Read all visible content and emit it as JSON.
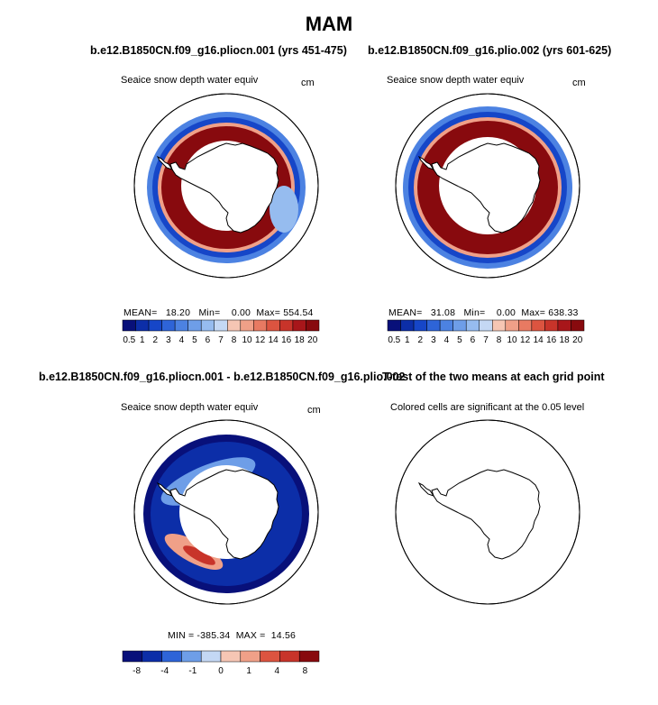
{
  "title": "MAM",
  "panels": [
    {
      "run": "b.e12.B1850CN.f09_g16.pliocn.001 (yrs 451-475)",
      "field": "Seaice snow depth water equiv",
      "units": "cm",
      "stats": {
        "mean_label": "MEAN=",
        "mean": "18.20",
        "min_label": "Min=",
        "min": "0.00",
        "max_label": "Max=",
        "max": "554.54"
      }
    },
    {
      "run": "b.e12.B1850CN.f09_g16.plio.002 (yrs 601-625)",
      "field": "Seaice snow depth water equiv",
      "units": "cm",
      "stats": {
        "mean_label": "MEAN=",
        "mean": "31.08",
        "min_label": "Min=",
        "min": "0.00",
        "max_label": "Max=",
        "max": "638.33"
      }
    },
    {
      "run": "b.e12.B1850CN.f09_g16.pliocn.001 - b.e12.B1850CN.f09_g16.plio.002",
      "field": "Seaice snow depth water equiv",
      "units": "cm",
      "stats": {
        "min_label": "MIN =",
        "min": "-385.34",
        "max_label": "MAX =",
        "max": "14.56"
      }
    },
    {
      "run": "T-test of the two means at each grid point",
      "field": "Colored cells are significant at the 0.05 level"
    }
  ],
  "colors": {
    "abs_scale": [
      "#08107a",
      "#0c2ea8",
      "#1646c8",
      "#2e64d8",
      "#4c82e2",
      "#6e9ee8",
      "#96bcef",
      "#c4d8f4",
      "#f6c6b4",
      "#f0a088",
      "#e87a62",
      "#dc5440",
      "#c8342a",
      "#a8161a",
      "#880a0e"
    ],
    "diff_scale": [
      "#08107a",
      "#0c2ea8",
      "#2e64d8",
      "#6e9ee8",
      "#c4d8f4",
      "#f6c6b4",
      "#f0a088",
      "#dc5440",
      "#c8342a",
      "#880a0e"
    ],
    "land_outline": "#000000"
  },
  "chart_data": [
    {
      "type": "heatmap",
      "title": "b.e12.B1850CN.f09_g16.pliocn.001 (yrs 451-475)",
      "subtitle": "Seaice snow depth water equiv",
      "units": "cm",
      "projection": "south polar stereographic",
      "colorbar_ticks": [
        "0.5",
        "1",
        "2",
        "3",
        "4",
        "5",
        "6",
        "7",
        "8",
        "10",
        "12",
        "14",
        "16",
        "18",
        "20"
      ],
      "mean": 18.2,
      "min": 0.0,
      "max": 554.54
    },
    {
      "type": "heatmap",
      "title": "b.e12.B1850CN.f09_g16.plio.002 (yrs 601-625)",
      "subtitle": "Seaice snow depth water equiv",
      "units": "cm",
      "projection": "south polar stereographic",
      "colorbar_ticks": [
        "0.5",
        "1",
        "2",
        "3",
        "4",
        "5",
        "6",
        "7",
        "8",
        "10",
        "12",
        "14",
        "16",
        "18",
        "20"
      ],
      "mean": 31.08,
      "min": 0.0,
      "max": 638.33
    },
    {
      "type": "heatmap",
      "title": "b.e12.B1850CN.f09_g16.pliocn.001 - b.e12.B1850CN.f09_g16.plio.002",
      "subtitle": "Seaice snow depth water equiv",
      "units": "cm",
      "projection": "south polar stereographic",
      "colorbar_ticks": [
        "-8",
        "-4",
        "-1",
        "0",
        "1",
        "4",
        "8"
      ],
      "min": -385.34,
      "max": 14.56
    },
    {
      "type": "heatmap",
      "title": "T-test of the two means at each grid point",
      "subtitle": "Colored cells are significant at the 0.05 level",
      "projection": "south polar stereographic"
    }
  ]
}
